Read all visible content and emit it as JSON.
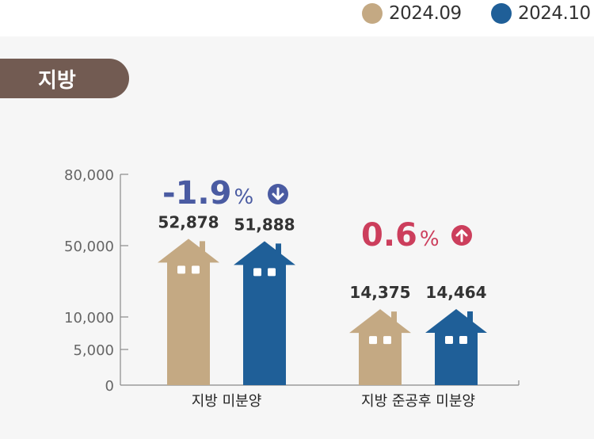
{
  "region_tab": {
    "label": "지방",
    "color": "#725b52"
  },
  "legend": [
    {
      "label": "2024.09",
      "color": "#c4a983"
    },
    {
      "label": "2024.10",
      "color": "#1f5f98"
    }
  ],
  "chart_data": {
    "type": "bar",
    "categories": [
      "지방 미분양",
      "지방 준공후 미분양"
    ],
    "series": [
      {
        "name": "2024.09",
        "values": [
          52878,
          14375
        ],
        "labels": [
          "52,878",
          "14,375"
        ],
        "color": "#c4a983"
      },
      {
        "name": "2024.10",
        "values": [
          51888,
          14464
        ],
        "labels": [
          "51,888",
          "14,464"
        ],
        "color": "#1f5f98"
      }
    ],
    "y_ticks": [
      {
        "value": 0,
        "label": "0"
      },
      {
        "value": 5000,
        "label": "5,000"
      },
      {
        "value": 10000,
        "label": "10,000"
      },
      {
        "value": 50000,
        "label": "50,000"
      },
      {
        "value": 80000,
        "label": "80,000"
      }
    ],
    "ylim": [
      0,
      80000
    ],
    "axis_break": "between 10,000 and 50,000",
    "changes": [
      {
        "number": "-1.9",
        "unit": "%",
        "direction": "down",
        "color": "#4a5ba2",
        "icon": "arrow-down-circle-icon"
      },
      {
        "number": "0.6",
        "unit": "%",
        "direction": "up",
        "color": "#cc3e5c",
        "icon": "arrow-up-circle-icon"
      }
    ],
    "xlabel": "",
    "ylabel": "",
    "title": ""
  }
}
